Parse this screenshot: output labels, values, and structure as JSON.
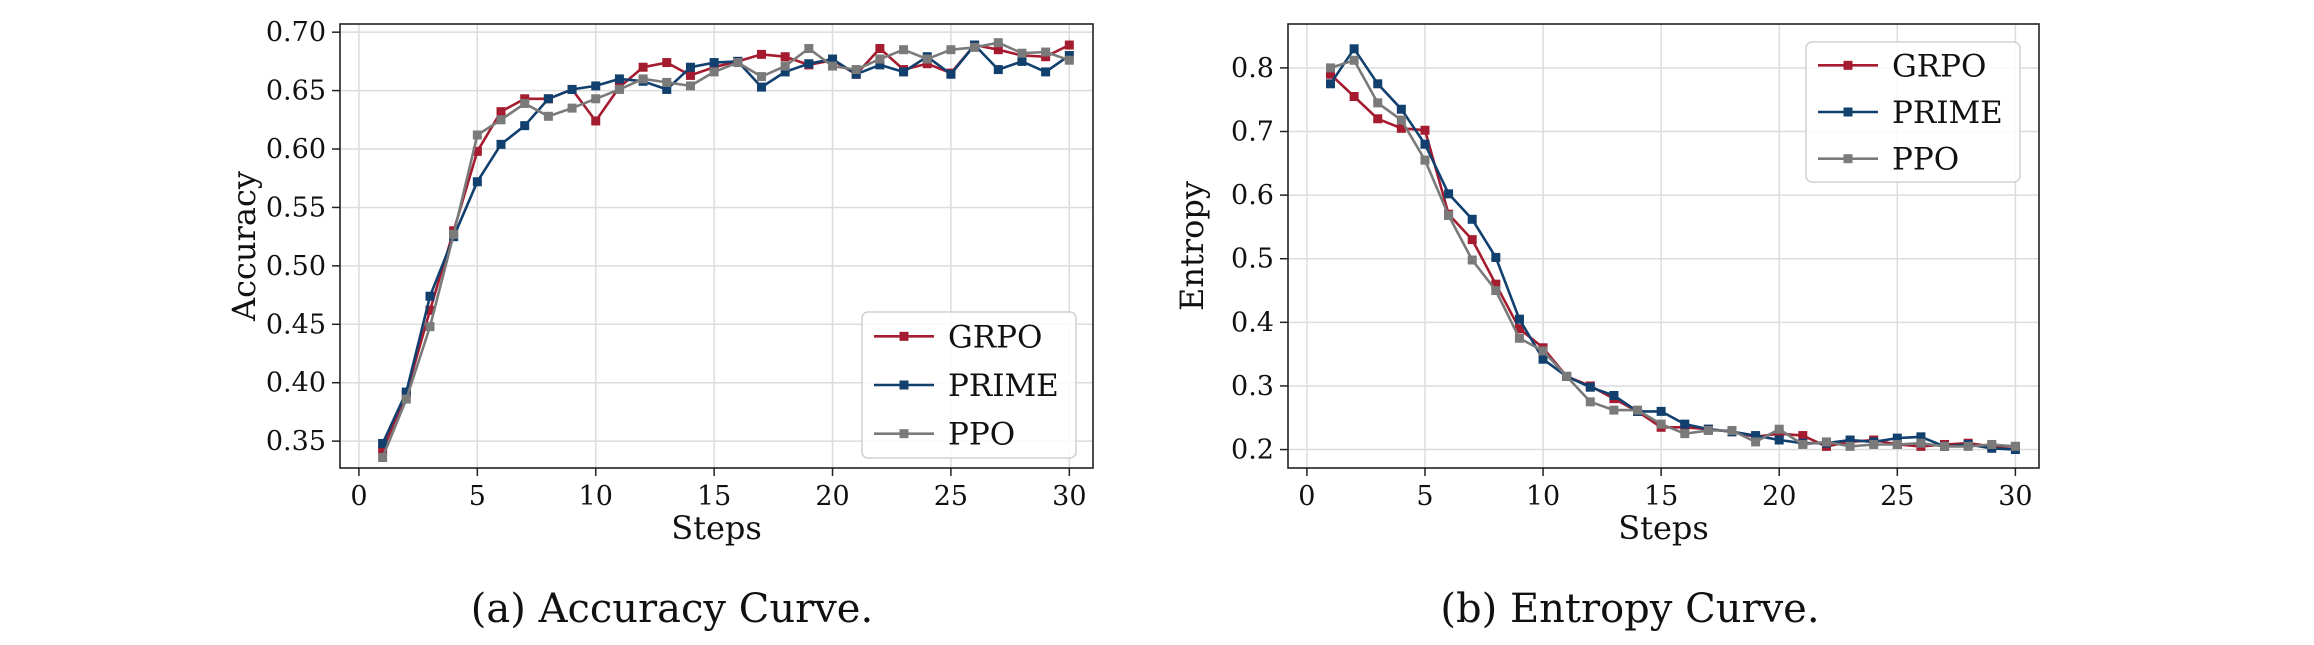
{
  "figure": {
    "captions": [
      "(a) Accuracy Curve.",
      "(b) Entropy Curve."
    ]
  },
  "chart_data": [
    {
      "type": "line",
      "title": "",
      "xlabel": "Steps",
      "ylabel": "Accuracy",
      "xlim": [
        -0.8,
        31
      ],
      "ylim": [
        0.327,
        0.707
      ],
      "xticks": [
        0,
        5,
        10,
        15,
        20,
        25,
        30
      ],
      "xtick_labels": [
        "0",
        "5",
        "10",
        "15",
        "20",
        "25",
        "30"
      ],
      "yticks": [
        0.35,
        0.4,
        0.45,
        0.5,
        0.55,
        0.6,
        0.65,
        0.7
      ],
      "ytick_labels": [
        "0.35",
        "0.40",
        "0.45",
        "0.50",
        "0.55",
        "0.60",
        "0.65",
        "0.70"
      ],
      "grid": true,
      "legend_position": "lower-right",
      "x": [
        1,
        2,
        3,
        4,
        5,
        6,
        7,
        8,
        9,
        10,
        11,
        12,
        13,
        14,
        15,
        16,
        17,
        18,
        19,
        20,
        21,
        22,
        23,
        24,
        25,
        26,
        27,
        28,
        29,
        30
      ],
      "series": [
        {
          "name": "GRPO",
          "color": "#a51c30",
          "marker": "square",
          "values": [
            0.342,
            0.391,
            0.462,
            0.53,
            0.598,
            0.632,
            0.643,
            0.643,
            0.651,
            0.624,
            0.653,
            0.67,
            0.674,
            0.663,
            0.67,
            0.675,
            0.681,
            0.679,
            0.672,
            0.676,
            0.664,
            0.686,
            0.668,
            0.673,
            0.665,
            0.689,
            0.685,
            0.68,
            0.679,
            0.689
          ]
        },
        {
          "name": "PRIME",
          "color": "#12406e",
          "marker": "square",
          "values": [
            0.348,
            0.392,
            0.474,
            0.525,
            0.572,
            0.604,
            0.62,
            0.643,
            0.651,
            0.654,
            0.66,
            0.658,
            0.651,
            0.67,
            0.674,
            0.675,
            0.653,
            0.666,
            0.673,
            0.677,
            0.664,
            0.672,
            0.666,
            0.679,
            0.664,
            0.689,
            0.668,
            0.675,
            0.666,
            0.68
          ]
        },
        {
          "name": "PPO",
          "color": "#7a7a7a",
          "marker": "square",
          "values": [
            0.336,
            0.386,
            0.448,
            0.527,
            0.612,
            0.625,
            0.639,
            0.628,
            0.635,
            0.643,
            0.651,
            0.66,
            0.657,
            0.654,
            0.666,
            0.674,
            0.662,
            0.671,
            0.686,
            0.671,
            0.668,
            0.677,
            0.685,
            0.677,
            0.685,
            0.687,
            0.691,
            0.682,
            0.683,
            0.676
          ]
        }
      ]
    },
    {
      "type": "line",
      "title": "",
      "xlabel": "Steps",
      "ylabel": "Entropy",
      "xlim": [
        -0.8,
        31
      ],
      "ylim": [
        0.171,
        0.869
      ],
      "xticks": [
        0,
        5,
        10,
        15,
        20,
        25,
        30
      ],
      "xtick_labels": [
        "0",
        "5",
        "10",
        "15",
        "20",
        "25",
        "30"
      ],
      "yticks": [
        0.2,
        0.3,
        0.4,
        0.5,
        0.6,
        0.7,
        0.8
      ],
      "ytick_labels": [
        "0.2",
        "0.3",
        "0.4",
        "0.5",
        "0.6",
        "0.7",
        "0.8"
      ],
      "grid": true,
      "legend_position": "top-right",
      "x": [
        1,
        2,
        3,
        4,
        5,
        6,
        7,
        8,
        9,
        10,
        11,
        12,
        13,
        14,
        15,
        16,
        17,
        18,
        19,
        20,
        21,
        22,
        23,
        24,
        25,
        26,
        27,
        28,
        29,
        30
      ],
      "series": [
        {
          "name": "GRPO",
          "color": "#a51c30",
          "marker": "square",
          "values": [
            0.79,
            0.755,
            0.72,
            0.705,
            0.702,
            0.57,
            0.53,
            0.46,
            0.39,
            0.36,
            0.315,
            0.3,
            0.28,
            0.26,
            0.235,
            0.235,
            0.232,
            0.228,
            0.22,
            0.225,
            0.222,
            0.205,
            0.212,
            0.215,
            0.208,
            0.205,
            0.208,
            0.21,
            0.205,
            0.205
          ]
        },
        {
          "name": "PRIME",
          "color": "#12406e",
          "marker": "square",
          "values": [
            0.775,
            0.83,
            0.775,
            0.735,
            0.68,
            0.602,
            0.562,
            0.502,
            0.405,
            0.342,
            0.315,
            0.298,
            0.285,
            0.26,
            0.26,
            0.24,
            0.232,
            0.228,
            0.222,
            0.215,
            0.21,
            0.21,
            0.215,
            0.212,
            0.218,
            0.22,
            0.205,
            0.208,
            0.202,
            0.2
          ]
        },
        {
          "name": "PPO",
          "color": "#7a7a7a",
          "marker": "square",
          "values": [
            0.8,
            0.812,
            0.745,
            0.718,
            0.655,
            0.568,
            0.498,
            0.45,
            0.375,
            0.355,
            0.315,
            0.275,
            0.262,
            0.262,
            0.24,
            0.225,
            0.23,
            0.23,
            0.212,
            0.232,
            0.208,
            0.212,
            0.205,
            0.208,
            0.208,
            0.21,
            0.205,
            0.205,
            0.208,
            0.205
          ]
        }
      ]
    }
  ]
}
